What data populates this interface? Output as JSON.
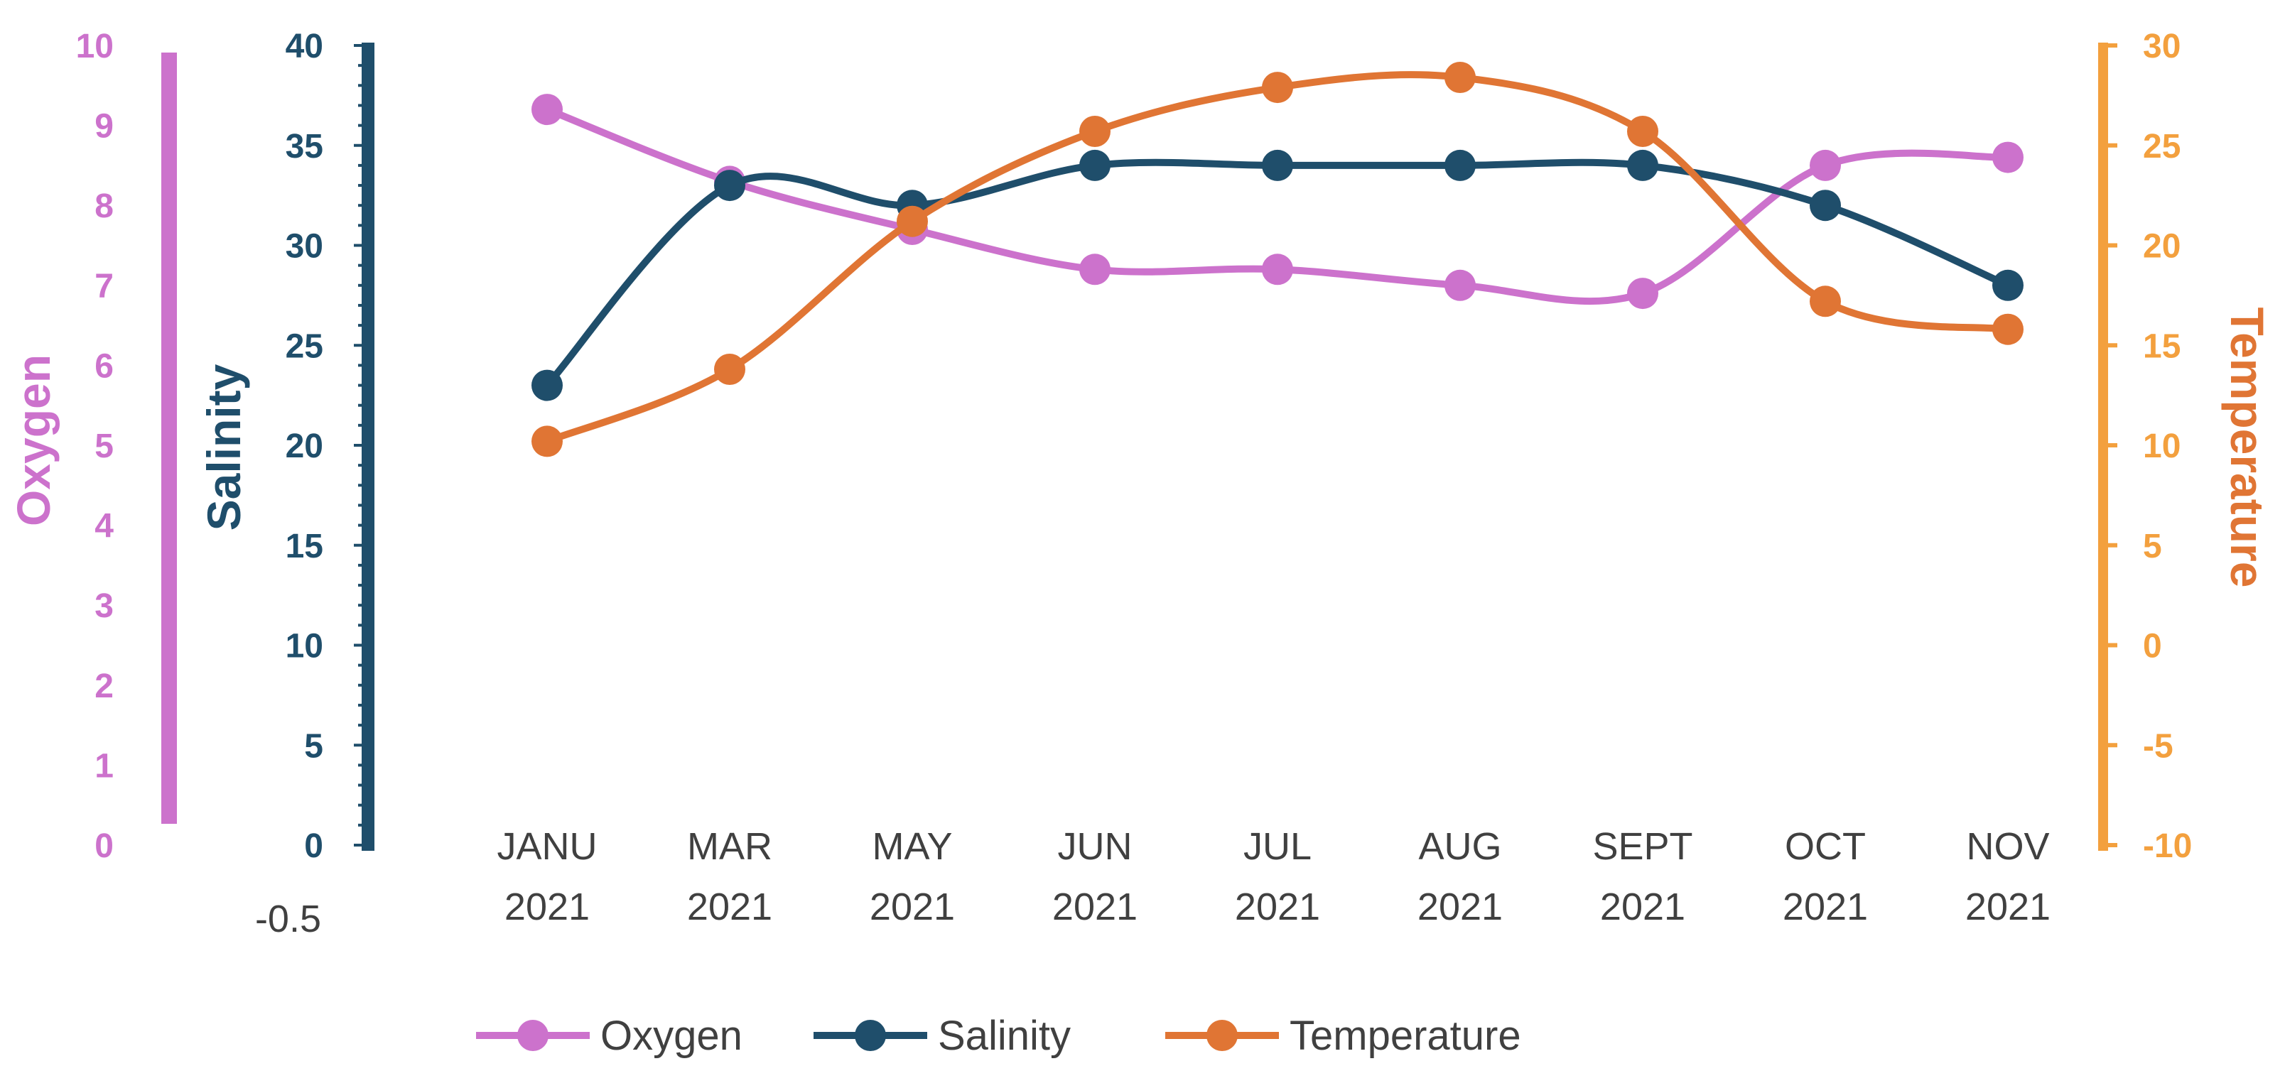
{
  "chart_data": {
    "type": "line",
    "categories": [
      [
        "JANU",
        "2021"
      ],
      [
        "MAR",
        "2021"
      ],
      [
        "MAY",
        "2021"
      ],
      [
        "JUN",
        "2021"
      ],
      [
        "JUL",
        "2021"
      ],
      [
        "AUG",
        "2021"
      ],
      [
        "SEPT",
        "2021"
      ],
      [
        "OCT",
        "2021"
      ],
      [
        "NOV",
        "2021"
      ]
    ],
    "series": [
      {
        "name": "Oxygen",
        "axis": "oxygen",
        "color": "#cc72cc",
        "values": [
          9.2,
          8.3,
          7.7,
          7.2,
          7.2,
          7.0,
          6.9,
          8.5,
          8.6
        ]
      },
      {
        "name": "Salinity",
        "axis": "salinity",
        "color": "#1f4e6b",
        "values": [
          23,
          33,
          32,
          34,
          34,
          34,
          34,
          32,
          28
        ]
      },
      {
        "name": "Temperature",
        "axis": "temperature",
        "color": "#e07534",
        "values": [
          10.2,
          13.8,
          21.2,
          25.7,
          27.9,
          28.4,
          25.7,
          17.2,
          15.8
        ]
      }
    ],
    "axes": {
      "oxygen": {
        "title": "Oxygen",
        "range": [
          0,
          10
        ],
        "ticks": [
          "0",
          "1",
          "2",
          "3",
          "4",
          "5",
          "6",
          "7",
          "8",
          "9",
          "10"
        ],
        "color": "#cc72cc",
        "position": "far-left"
      },
      "salinity": {
        "title": "Salinity",
        "range": [
          0,
          40
        ],
        "ticks": [
          "0",
          "5",
          "10",
          "15",
          "20",
          "25",
          "30",
          "35",
          "40"
        ],
        "color": "#1f4e6b",
        "position": "left"
      },
      "temperature": {
        "title": "Temperature",
        "range": [
          -10,
          30
        ],
        "ticks": [
          "-10",
          "-5",
          "0",
          "5",
          "10",
          "15",
          "20",
          "25",
          "30"
        ],
        "color": "#f3a03e",
        "title_color": "#e07534",
        "position": "right"
      }
    },
    "extra_label": "-0.5",
    "legend": {
      "position": "bottom",
      "items": [
        "Oxygen",
        "Salinity",
        "Temperature"
      ]
    },
    "grid": false
  }
}
